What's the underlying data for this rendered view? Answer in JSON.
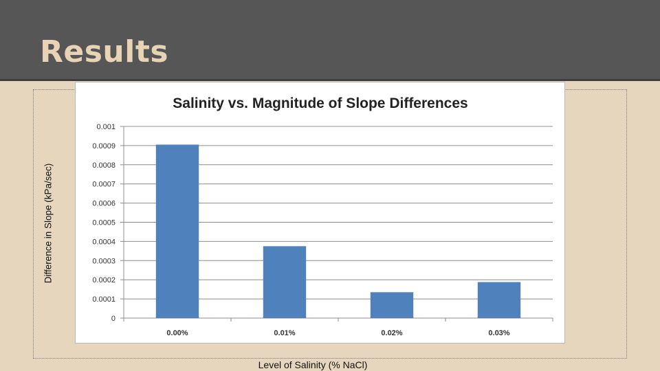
{
  "slide": {
    "title": "Results"
  },
  "chart_data": {
    "type": "bar",
    "title": "Salinity vs. Magnitude of Slope Differences",
    "xlabel": "Level of Salinity (% NaCl)",
    "ylabel": "Difference in Slope (kPa/sec)",
    "categories": [
      "0.00%",
      "0.01%",
      "0.02%",
      "0.03%"
    ],
    "values": [
      0.000905,
      0.000375,
      0.000135,
      0.000188
    ],
    "ylim": [
      0,
      0.001
    ],
    "yticks": [
      "0",
      "0.0001",
      "0.0002",
      "0.0003",
      "0.0004",
      "0.0005",
      "0.0006",
      "0.0007",
      "0.0008",
      "0.0009",
      "0.001"
    ],
    "grid": true,
    "bar_color": "#4f81bd"
  }
}
